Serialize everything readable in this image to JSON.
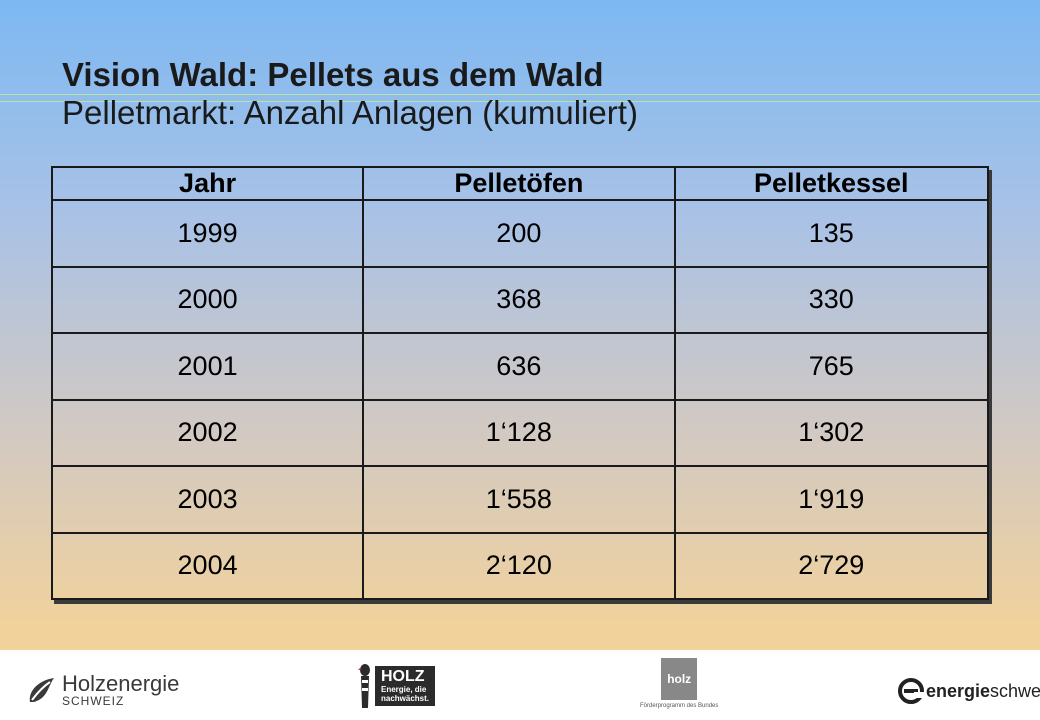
{
  "title": "Vision Wald: Pellets aus dem Wald",
  "subtitle": "Pelletmarkt: Anzahl Anlagen (kumuliert)",
  "table": {
    "headers": [
      "Jahr",
      "Pelletöfen",
      "Pelletkessel"
    ],
    "rows": [
      [
        "1999",
        "200",
        "135"
      ],
      [
        "2000",
        "368",
        "330"
      ],
      [
        "2001",
        "636",
        "765"
      ],
      [
        "2002",
        "1‘128",
        "1‘302"
      ],
      [
        "2003",
        "1‘558",
        "1‘919"
      ],
      [
        "2004",
        "2‘120",
        "2‘729"
      ]
    ]
  },
  "footer": {
    "holzenergie": {
      "name": "Holzenergie",
      "sub": "SCHWEIZ"
    },
    "holz": {
      "name": "HOLZ",
      "tagline_1": "Energie, die",
      "tagline_2": "nachwächst."
    },
    "holz2": {
      "name": "holz",
      "caption": "Förderprogramm des Bundes"
    },
    "energieschweiz": {
      "part1": "energie",
      "part2": "schweiz"
    }
  }
}
